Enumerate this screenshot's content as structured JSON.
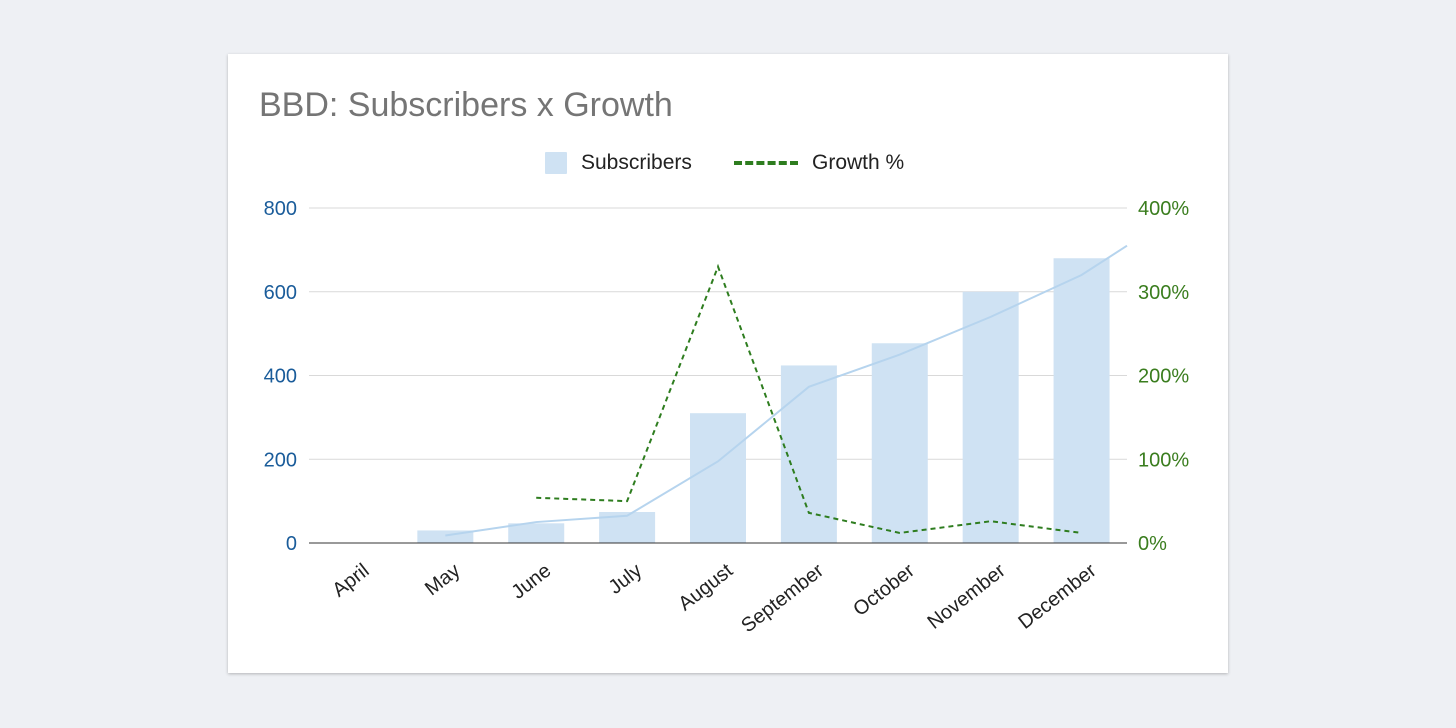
{
  "chart_data": {
    "type": "bar",
    "title": "BBD: Subscribers x Growth",
    "categories": [
      "April",
      "May",
      "June",
      "July",
      "August",
      "September",
      "October",
      "November",
      "December"
    ],
    "series": [
      {
        "name": "Subscribers",
        "type": "bar",
        "axis": "left",
        "color": "#cfe2f3",
        "values": [
          0,
          30,
          47,
          74,
          310,
          424,
          477,
          600,
          680
        ]
      },
      {
        "name": "Growth %",
        "type": "line",
        "style": "dashed",
        "axis": "right",
        "color": "#2e7d1f",
        "values": [
          null,
          null,
          54,
          50,
          330,
          36,
          12,
          26,
          12
        ]
      }
    ],
    "trendline": {
      "series": "Subscribers",
      "color": "#b6d4ee",
      "values": [
        null,
        18,
        50,
        65,
        195,
        373,
        450,
        540,
        640
      ],
      "end_value": 710
    },
    "left_axis": {
      "min": 0,
      "max": 800,
      "ticks": [
        0,
        200,
        400,
        600,
        800
      ],
      "tick_labels": [
        "0",
        "200",
        "400",
        "600",
        "800"
      ],
      "color": "#1a5c9a"
    },
    "right_axis": {
      "min": 0,
      "max": 400,
      "ticks": [
        0,
        100,
        200,
        300,
        400
      ],
      "tick_labels": [
        "0%",
        "100%",
        "200%",
        "300%",
        "400%"
      ],
      "color": "#3a7d1e"
    },
    "grid": true,
    "legend_position": "top-center"
  }
}
